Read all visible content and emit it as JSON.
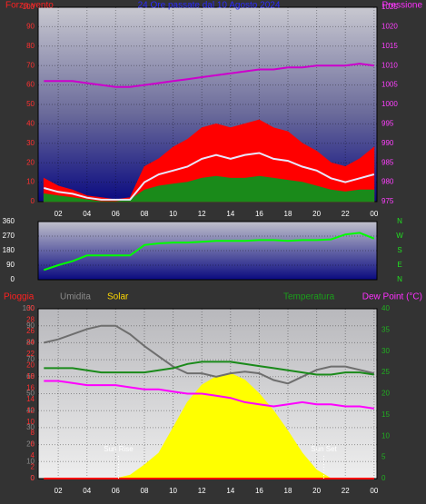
{
  "chart_data": [
    {
      "type": "line",
      "title": "24 Ore passate dal 10 Agosto 2024",
      "ylabel": "Forza vento",
      "y2label": "Pressione",
      "x": [
        1,
        2,
        3,
        4,
        5,
        6,
        7,
        8,
        9,
        10,
        11,
        12,
        13,
        14,
        15,
        16,
        17,
        18,
        19,
        20,
        21,
        22,
        23,
        24
      ],
      "xlim": [
        0.6,
        24.2
      ],
      "xticks": [
        {
          "value": 2,
          "label": "02"
        },
        {
          "value": 4,
          "label": "04"
        },
        {
          "value": 6,
          "label": "06"
        },
        {
          "value": 8,
          "label": "08"
        },
        10,
        12,
        14,
        16,
        18,
        20,
        22,
        {
          "value": 24,
          "label": "00"
        }
      ],
      "ylim": [
        0,
        100
      ],
      "yticks": [
        0,
        10,
        20,
        30,
        40,
        50,
        60,
        70,
        80,
        90,
        100
      ],
      "y2lim": [
        975,
        1025
      ],
      "y2ticks": [
        975,
        980,
        985,
        990,
        995,
        1000,
        1005,
        1010,
        1015,
        1020,
        1025
      ],
      "grid": true,
      "series": [
        {
          "color": "#ff0000",
          "style": "area",
          "values": [
            12,
            8,
            6,
            3,
            2,
            1,
            2,
            18,
            22,
            28,
            32,
            38,
            40,
            38,
            40,
            42,
            38,
            36,
            30,
            26,
            20,
            18,
            22,
            28
          ]
        },
        {
          "color": "#1a8a1a",
          "style": "area",
          "values": [
            4,
            3,
            2,
            1,
            0,
            0,
            1,
            6,
            8,
            9,
            10,
            12,
            13,
            12,
            12,
            13,
            12,
            11,
            10,
            8,
            6,
            5,
            6,
            6
          ]
        },
        {
          "color": "#e8e8ff",
          "style": "line",
          "values": [
            7,
            5,
            4,
            2,
            1,
            1,
            1,
            10,
            14,
            16,
            18,
            22,
            24,
            22,
            24,
            25,
            22,
            21,
            18,
            16,
            12,
            10,
            12,
            14
          ]
        },
        {
          "color": "#cc00cc",
          "style": "line",
          "axis": "y2",
          "values": [
            1006,
            1006,
            1006,
            1005.5,
            1005,
            1004.5,
            1004.5,
            1005,
            1005.5,
            1006,
            1006.5,
            1007,
            1007.5,
            1008,
            1008.5,
            1009,
            1009,
            1009.5,
            1009.5,
            1010,
            1010,
            1010,
            1010.5,
            1010
          ]
        }
      ]
    },
    {
      "type": "line",
      "x": [
        1,
        2,
        3,
        4,
        5,
        6,
        7,
        8,
        9,
        10,
        11,
        12,
        13,
        14,
        15,
        16,
        17,
        18,
        19,
        20,
        21,
        22,
        23,
        24
      ],
      "xlim": [
        0.6,
        24.2
      ],
      "ylim": [
        0,
        360
      ],
      "yticks": [
        0,
        90,
        180,
        270,
        360
      ],
      "compass": [
        "N",
        "W",
        "S",
        "E",
        "N"
      ],
      "grid": true,
      "series": [
        {
          "color": "#00ff00",
          "style": "line",
          "values": [
            60,
            90,
            115,
            150,
            150,
            150,
            150,
            215,
            225,
            230,
            230,
            235,
            240,
            240,
            240,
            245,
            245,
            240,
            245,
            245,
            250,
            280,
            290,
            255
          ]
        }
      ]
    },
    {
      "type": "line",
      "x": [
        1,
        2,
        3,
        4,
        5,
        6,
        7,
        8,
        9,
        10,
        11,
        12,
        13,
        14,
        15,
        16,
        17,
        18,
        19,
        20,
        21,
        22,
        23,
        24
      ],
      "xlim": [
        0.6,
        24.2
      ],
      "xticks": [
        {
          "value": 2,
          "label": "02"
        },
        {
          "value": 4,
          "label": "04"
        },
        {
          "value": 6,
          "label": "06"
        },
        {
          "value": 8,
          "label": "08"
        },
        10,
        12,
        14,
        16,
        18,
        20,
        22,
        {
          "value": 24,
          "label": "00"
        }
      ],
      "ylim": [
        0,
        100
      ],
      "yticks": [
        0,
        10,
        20,
        30,
        40,
        50,
        60,
        70,
        80,
        90,
        100
      ],
      "y2lim": [
        0,
        40
      ],
      "y2ticks": [
        0,
        5,
        10,
        15,
        20,
        25,
        30,
        35,
        40
      ],
      "y3lim": [
        0,
        30
      ],
      "y3ticks": [
        0,
        2,
        4,
        6,
        8,
        10,
        12,
        14,
        16,
        18,
        20,
        22,
        24,
        26,
        28,
        30
      ],
      "grid": true,
      "annotations": [
        {
          "text": "Sun Rise",
          "x": 6.2
        },
        {
          "text": "Sun Set",
          "x": 20.5
        }
      ],
      "series": [
        {
          "name": "Solar",
          "color": "#ffff00",
          "style": "area",
          "values": [
            0,
            0,
            0,
            0,
            0,
            0,
            2,
            8,
            15,
            30,
            45,
            55,
            60,
            62,
            58,
            50,
            40,
            28,
            15,
            5,
            0,
            0,
            0,
            0
          ]
        },
        {
          "name": "Umidita",
          "color": "#6e6e6e",
          "style": "line",
          "values": [
            80,
            82,
            85,
            88,
            90,
            90,
            85,
            78,
            72,
            66,
            62,
            62,
            60,
            62,
            63,
            62,
            58,
            56,
            60,
            64,
            66,
            66,
            64,
            62
          ]
        },
        {
          "name": "Temperatura",
          "color": "#1a8a1a",
          "style": "line",
          "axis": "y2",
          "values": [
            26,
            26,
            26,
            25.5,
            25,
            25,
            25,
            25,
            25.5,
            26,
            27,
            27.5,
            27.5,
            27.5,
            27,
            26.5,
            26,
            25.5,
            25,
            24.5,
            24.5,
            25,
            25,
            24.5
          ]
        },
        {
          "name": "Dew Point (°C)",
          "color": "#ff00ff",
          "style": "line",
          "axis": "y2",
          "values": [
            23,
            23,
            22.5,
            22,
            22,
            22,
            21.5,
            21,
            21,
            20.5,
            20,
            20,
            19.5,
            19,
            18,
            17.5,
            17,
            17.5,
            18,
            17.5,
            17.5,
            17,
            17,
            16.5
          ]
        },
        {
          "name": "Pioggia",
          "color": "#ff0000",
          "style": "line",
          "axis": "y3",
          "values": [
            0,
            0,
            0,
            0,
            0,
            0,
            0,
            0,
            0,
            0,
            0,
            0,
            0,
            0,
            0,
            0,
            0,
            0,
            0,
            0,
            0,
            0,
            0,
            0
          ]
        }
      ]
    }
  ]
}
